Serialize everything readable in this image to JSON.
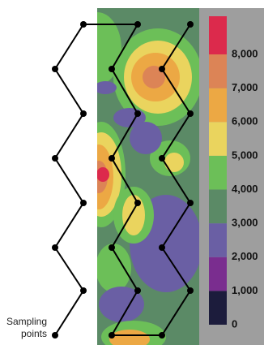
{
  "colorbar": {
    "colors": [
      "#1c1c3c",
      "#7a2d8f",
      "#6a5fa4",
      "#5b8a66",
      "#6cbf58",
      "#ead45e",
      "#eca844",
      "#dc8456",
      "#dc2a4c"
    ],
    "ticks": [
      0,
      {
        "value": 1000,
        "label": "1,000"
      },
      {
        "value": 2000,
        "label": "2,000"
      },
      {
        "value": 3000,
        "label": "3,000"
      },
      {
        "value": 4000,
        "label": "4,000"
      },
      {
        "value": 5000,
        "label": "5,000"
      },
      {
        "value": 6000,
        "label": "6,000"
      },
      {
        "value": 7000,
        "label": "7,000"
      },
      {
        "value": 8000,
        "label": "8,000"
      }
    ]
  },
  "annotation": [
    "Sampling",
    "points"
  ]
}
